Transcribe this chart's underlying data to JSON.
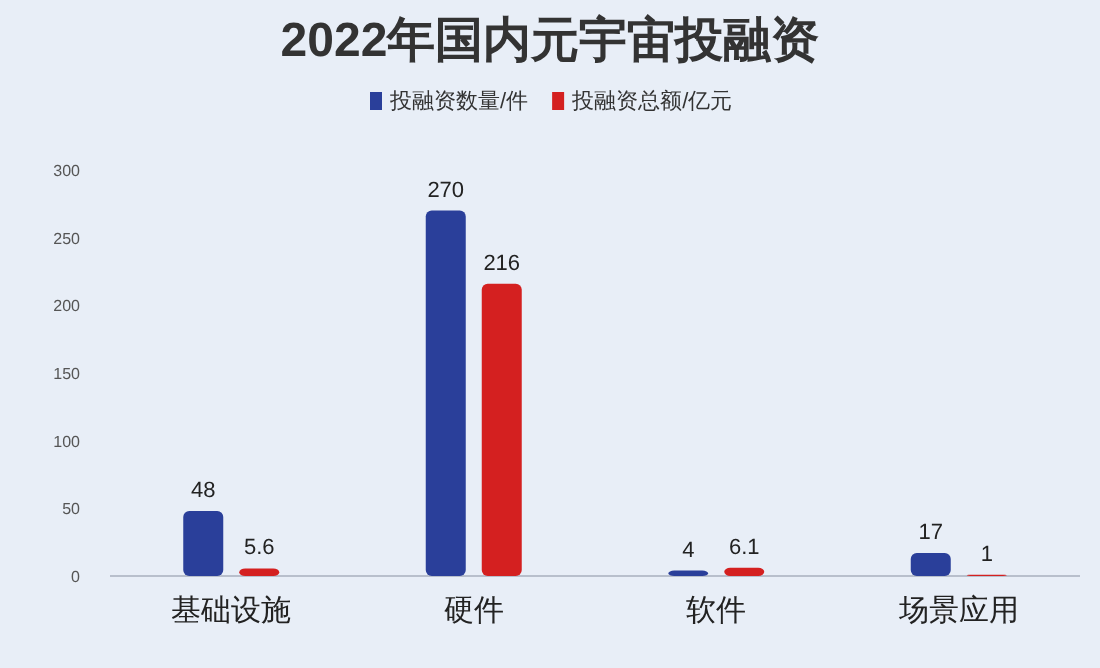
{
  "chart_data": {
    "type": "bar",
    "title": "2022年国内元宇宙投融资",
    "categories": [
      "基础设施",
      "硬件",
      "软件",
      "场景应用"
    ],
    "series": [
      {
        "name": "投融资数量/件",
        "color": "#2a3f9a",
        "values": [
          48,
          270,
          4,
          17
        ]
      },
      {
        "name": "投融资总额/亿元",
        "color": "#d42020",
        "values": [
          5.6,
          216,
          6.1,
          1
        ]
      }
    ],
    "ylim": [
      0,
      300
    ],
    "yticks": [
      0,
      50,
      100,
      150,
      200,
      250,
      300
    ],
    "data_labels": true,
    "legend": "top"
  }
}
